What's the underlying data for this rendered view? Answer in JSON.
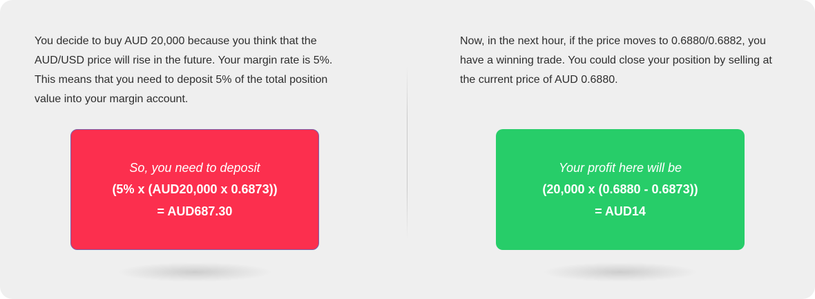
{
  "left": {
    "paragraph": "You decide to buy AUD 20,000 because you think that the AUD/USD price will rise in the future. Your margin rate is 5%. This means that you need to deposit 5% of the total position value into your margin account.",
    "card": {
      "intro": "So, you need to deposit",
      "formula": "(5% x (AUD20,000 x 0.6873))",
      "result": "= AUD687.30",
      "color": "#fc2f4e"
    }
  },
  "right": {
    "paragraph": "Now, in the next hour, if the price moves to 0.6880/0.6882, you have a winning trade. You could close your position by selling at the current price of AUD 0.6880.",
    "card": {
      "intro": "Your profit here will be",
      "formula": "(20,000 x (0.6880 - 0.6873))",
      "result": "= AUD14",
      "color": "#27cd69"
    }
  }
}
